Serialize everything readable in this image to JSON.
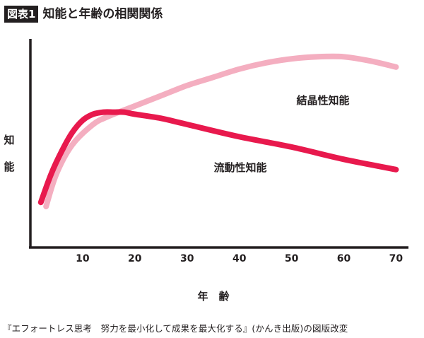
{
  "figure": {
    "badge": "図表1",
    "title": "知能と年齢の相関関係",
    "source": "『エフォートレス思考　努力を最小化して成果を最大化する』(かんき出版)の図版改変"
  },
  "chart_data": {
    "type": "line",
    "xlabel": "年　齢",
    "ylabel": "知能",
    "x_ticks": [
      10,
      20,
      30,
      40,
      50,
      60,
      70
    ],
    "xlim": [
      0,
      74
    ],
    "ylim": [
      0,
      100
    ],
    "y_ticks_shown": false,
    "grid": false,
    "series": [
      {
        "name": "結晶性知能",
        "color": "#f4aec0",
        "x": [
          3,
          5,
          8,
          12,
          15,
          20,
          25,
          30,
          35,
          40,
          45,
          50,
          55,
          60,
          65,
          70
        ],
        "y": [
          20,
          36,
          50,
          60,
          64,
          69,
          74,
          79,
          83,
          87,
          90,
          92,
          93,
          93,
          91,
          88
        ]
      },
      {
        "name": "流動性知能",
        "color": "#e8194d",
        "x": [
          2,
          4,
          6,
          8,
          10,
          12,
          14,
          16,
          18,
          20,
          25,
          30,
          40,
          50,
          60,
          70
        ],
        "y": [
          22,
          36,
          47,
          56,
          62,
          65,
          66,
          66,
          66,
          65,
          63,
          60,
          54,
          49,
          43,
          38
        ]
      }
    ]
  }
}
